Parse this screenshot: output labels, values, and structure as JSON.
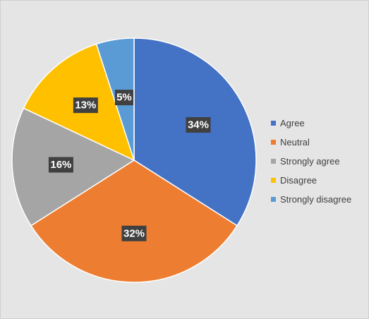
{
  "chart_data": {
    "type": "pie",
    "legend_position": "right",
    "slices": [
      {
        "label": "Agree",
        "value": 34,
        "display": "34%",
        "color": "#4472c4"
      },
      {
        "label": "Neutral",
        "value": 32,
        "display": "32%",
        "color": "#ed7d31"
      },
      {
        "label": "Strongly agree",
        "value": 16,
        "display": "16%",
        "color": "#a5a5a5"
      },
      {
        "label": "Disagree",
        "value": 13,
        "display": "13%",
        "color": "#ffc000"
      },
      {
        "label": "Strongly disagree",
        "value": 5,
        "display": "5%",
        "color": "#5b9bd5"
      }
    ]
  }
}
